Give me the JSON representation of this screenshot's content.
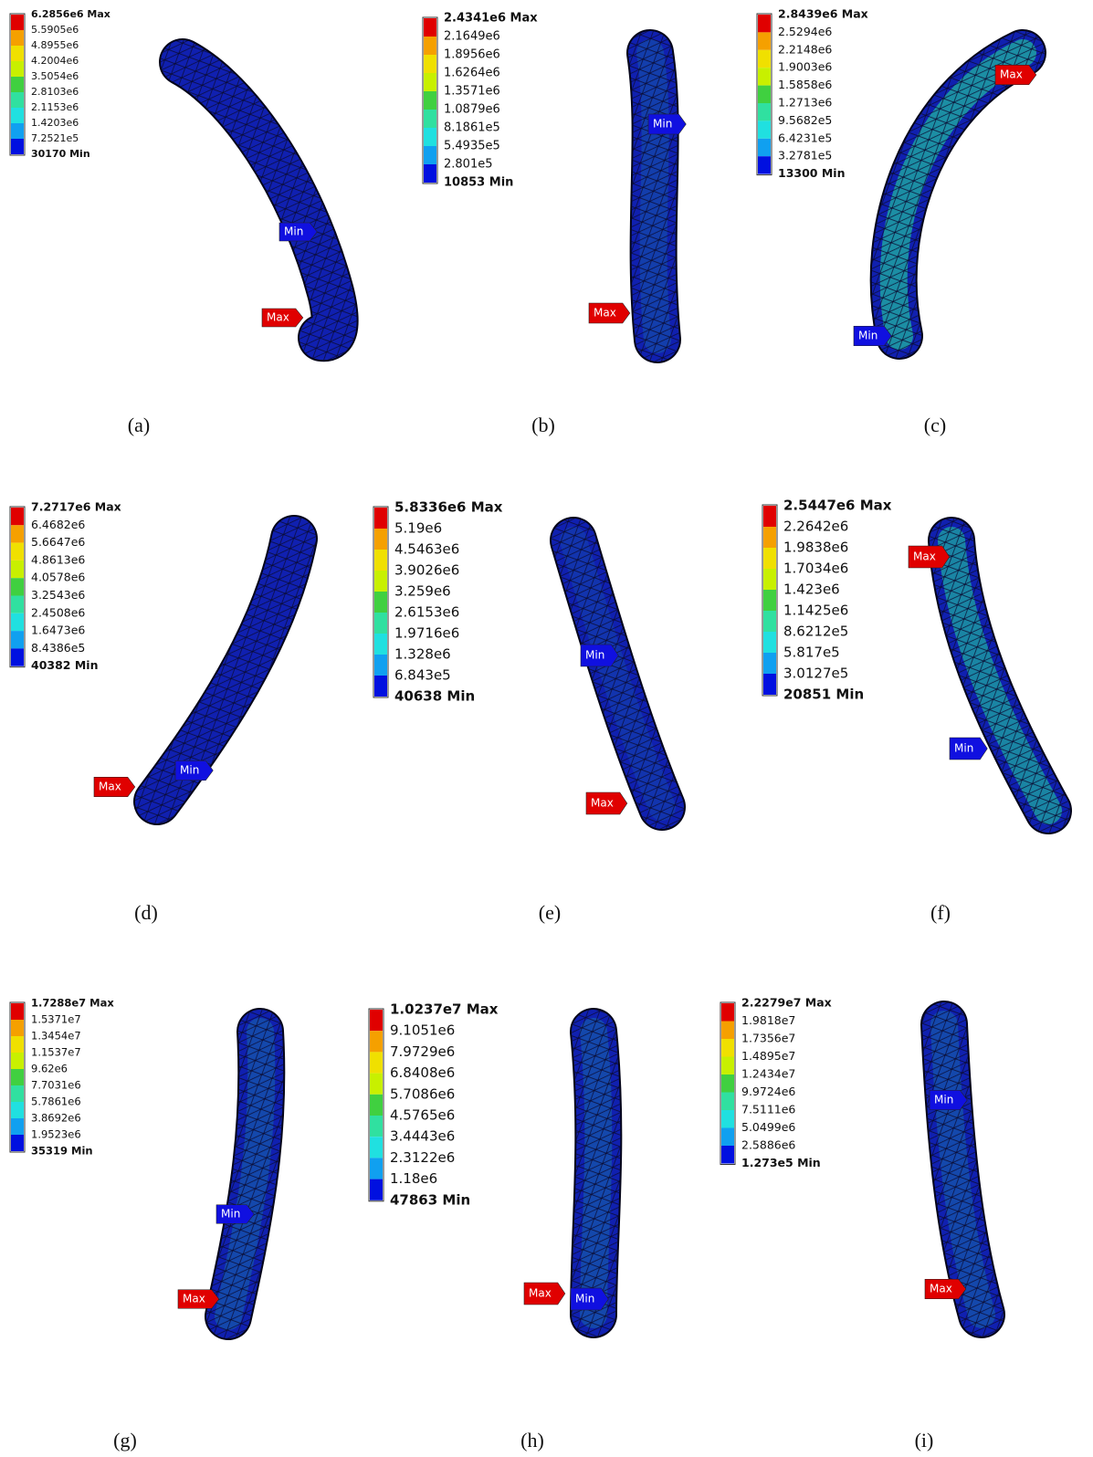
{
  "panels": [
    {
      "label": "(a)",
      "legend": [
        "6.2856e6 Max",
        "5.5905e6",
        "4.8955e6",
        "4.2004e6",
        "3.5054e6",
        "2.8103e6",
        "2.1153e6",
        "1.4203e6",
        "7.2521e5",
        "30170 Min"
      ],
      "max_tag": "Max",
      "min_tag": "Min"
    },
    {
      "label": "(b)",
      "legend": [
        "2.4341e6 Max",
        "2.1649e6",
        "1.8956e6",
        "1.6264e6",
        "1.3571e6",
        "1.0879e6",
        "8.1861e5",
        "5.4935e5",
        "2.801e5",
        "10853 Min"
      ],
      "max_tag": "Max",
      "min_tag": "Min"
    },
    {
      "label": "(c)",
      "legend": [
        "2.8439e6 Max",
        "2.5294e6",
        "2.2148e6",
        "1.9003e6",
        "1.5858e6",
        "1.2713e6",
        "9.5682e5",
        "6.4231e5",
        "3.2781e5",
        "13300 Min"
      ],
      "max_tag": "Max",
      "min_tag": "Min"
    },
    {
      "label": "(d)",
      "legend": [
        "7.2717e6 Max",
        "6.4682e6",
        "5.6647e6",
        "4.8613e6",
        "4.0578e6",
        "3.2543e6",
        "2.4508e6",
        "1.6473e6",
        "8.4386e5",
        "40382 Min"
      ],
      "max_tag": "Max",
      "min_tag": "Min"
    },
    {
      "label": "(e)",
      "legend": [
        "5.8336e6 Max",
        "5.19e6",
        "4.5463e6",
        "3.9026e6",
        "3.259e6",
        "2.6153e6",
        "1.9716e6",
        "1.328e6",
        "6.843e5",
        "40638 Min"
      ],
      "max_tag": "Max",
      "min_tag": "Min"
    },
    {
      "label": "(f)",
      "legend": [
        "2.5447e6 Max",
        "2.2642e6",
        "1.9838e6",
        "1.7034e6",
        "1.423e6",
        "1.1425e6",
        "8.6212e5",
        "5.817e5",
        "3.0127e5",
        "20851 Min"
      ],
      "max_tag": "Max",
      "min_tag": "Min"
    },
    {
      "label": "(g)",
      "legend": [
        "1.7288e7 Max",
        "1.5371e7",
        "1.3454e7",
        "1.1537e7",
        "9.62e6",
        "7.7031e6",
        "5.7861e6",
        "3.8692e6",
        "1.9523e6",
        "35319 Min"
      ],
      "max_tag": "Max",
      "min_tag": "Min"
    },
    {
      "label": "(h)",
      "legend": [
        "1.0237e7 Max",
        "9.1051e6",
        "7.9729e6",
        "6.8408e6",
        "5.7086e6",
        "4.5765e6",
        "3.4443e6",
        "2.3122e6",
        "1.18e6",
        "47863 Min"
      ],
      "max_tag": "Max",
      "min_tag": "Min"
    },
    {
      "label": "(i)",
      "legend": [
        "2.2279e7 Max",
        "1.9818e7",
        "1.7356e7",
        "1.4895e7",
        "1.2434e7",
        "9.9724e6",
        "7.5111e6",
        "5.0499e6",
        "2.5886e6",
        "1.273e5 Min"
      ],
      "max_tag": "Max",
      "min_tag": "Min"
    }
  ]
}
